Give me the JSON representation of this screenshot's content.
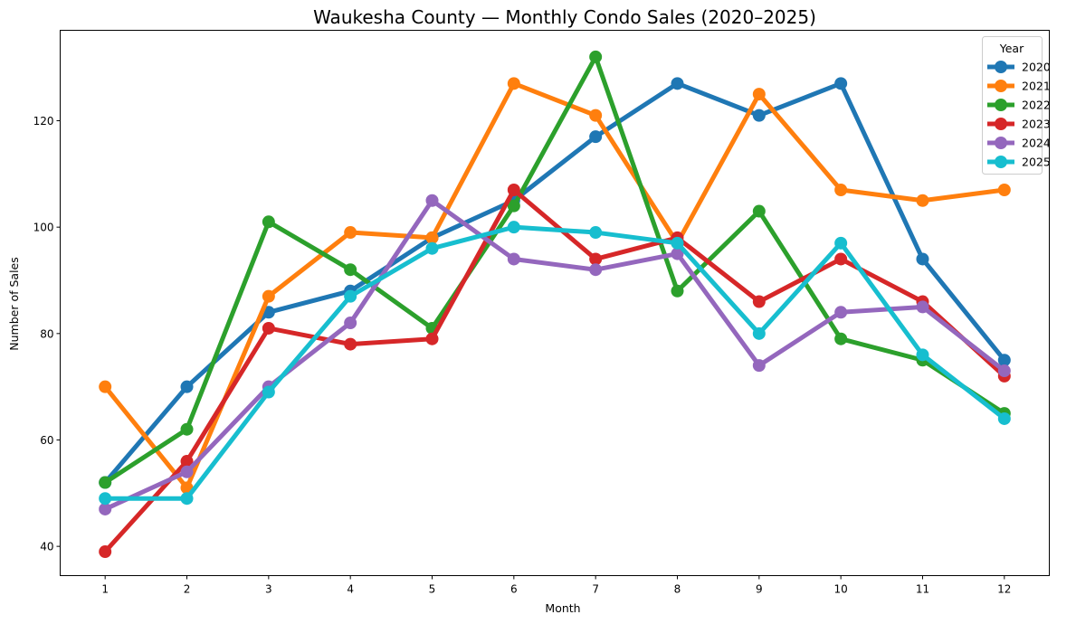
{
  "chart_data": {
    "type": "line",
    "title": "Waukesha County — Monthly Condo Sales (2020–2025)",
    "xlabel": "Month",
    "ylabel": "Number of Sales",
    "x": [
      1,
      2,
      3,
      4,
      5,
      6,
      7,
      8,
      9,
      10,
      11,
      12
    ],
    "x_tick_labels": [
      "1",
      "2",
      "3",
      "4",
      "5",
      "6",
      "7",
      "8",
      "9",
      "10",
      "11",
      "12"
    ],
    "xlim": [
      0.45,
      12.55
    ],
    "ylim": [
      34.5,
      137
    ],
    "y_ticks": [
      40,
      60,
      80,
      100,
      120
    ],
    "y_tick_labels": [
      "40",
      "60",
      "80",
      "100",
      "120"
    ],
    "grid": false,
    "legend": {
      "title": "Year",
      "placement": "top-right"
    },
    "series": [
      {
        "name": "2020",
        "color": "#1f77b4",
        "values": [
          52,
          70,
          84,
          88,
          98,
          105,
          117,
          127,
          121,
          127,
          94,
          75
        ]
      },
      {
        "name": "2021",
        "color": "#ff7f0e",
        "values": [
          70,
          51,
          87,
          99,
          98,
          127,
          121,
          97,
          125,
          107,
          105,
          107
        ]
      },
      {
        "name": "2022",
        "color": "#2ca02c",
        "values": [
          52,
          62,
          101,
          92,
          81,
          104,
          132,
          88,
          103,
          79,
          75,
          65
        ]
      },
      {
        "name": "2023",
        "color": "#d62728",
        "values": [
          39,
          56,
          81,
          78,
          79,
          107,
          94,
          98,
          86,
          94,
          86,
          72
        ]
      },
      {
        "name": "2024",
        "color": "#9467bd",
        "values": [
          47,
          54,
          70,
          82,
          105,
          94,
          92,
          95,
          74,
          84,
          85,
          73
        ]
      },
      {
        "name": "2025",
        "color": "#17becf",
        "values": [
          49,
          49,
          69,
          87,
          96,
          100,
          99,
          97,
          80,
          97,
          76,
          64
        ]
      }
    ]
  }
}
